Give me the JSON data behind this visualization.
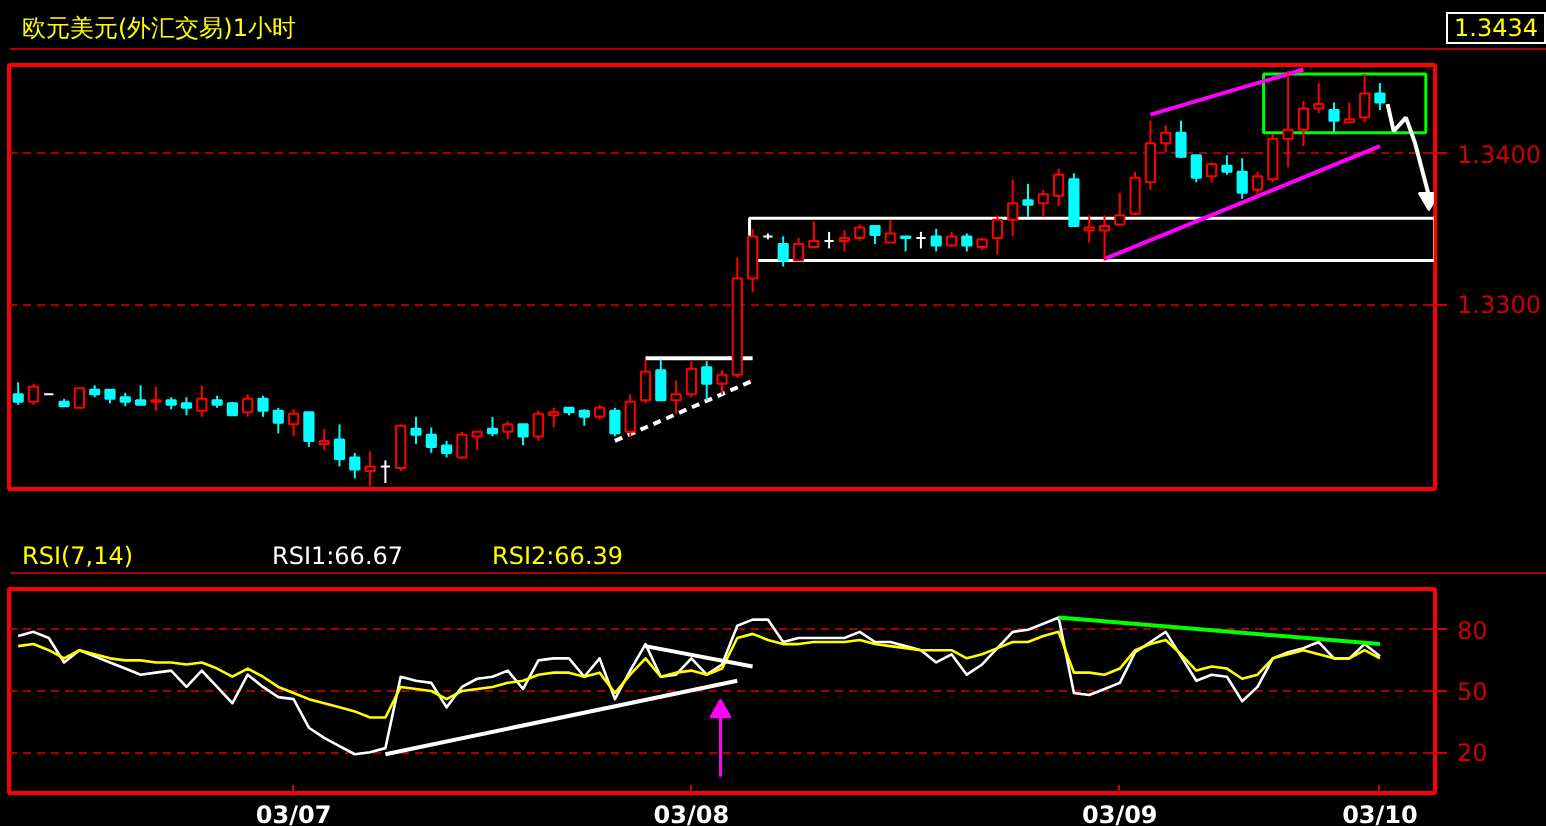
{
  "chart_data": [
    {
      "type": "candlestick",
      "title": "欧元美元(外汇交易)1小时",
      "categories": [
        null,
        null,
        null,
        null,
        null,
        null,
        null,
        null,
        null,
        null,
        null,
        null,
        null,
        null,
        null,
        null,
        null,
        null,
        null,
        null,
        null,
        null,
        null,
        null,
        null,
        null,
        null,
        null,
        null,
        null,
        null,
        null,
        null,
        null,
        null,
        null,
        null,
        null,
        null,
        null,
        null,
        null,
        null,
        null,
        null,
        null,
        null,
        null,
        null,
        null,
        null,
        null,
        null,
        null,
        null,
        null,
        null,
        null,
        null,
        null,
        null,
        null,
        null,
        null,
        null,
        null,
        null,
        null,
        null,
        null,
        null,
        null,
        null,
        null,
        null,
        null,
        null,
        null,
        null,
        null,
        null,
        null,
        null,
        null,
        null,
        null,
        null,
        null,
        null,
        null
      ],
      "ohlc": [
        [
          1.324,
          1.3248,
          1.3233,
          1.3235
        ],
        [
          1.3235,
          1.3247,
          1.3233,
          1.3245
        ],
        [
          1.324,
          1.324,
          1.324,
          1.324
        ],
        [
          1.3235,
          1.3237,
          1.3232,
          1.3232
        ],
        [
          1.3231,
          1.3244,
          1.3231,
          1.3244
        ],
        [
          1.3243,
          1.3246,
          1.3238,
          1.324
        ],
        [
          1.3243,
          1.3243,
          1.3234,
          1.3237
        ],
        [
          1.3238,
          1.3241,
          1.3232,
          1.3235
        ],
        [
          1.3236,
          1.3246,
          1.3233,
          1.3233
        ],
        [
          1.3235,
          1.3245,
          1.3229,
          1.3236
        ],
        [
          1.3236,
          1.3238,
          1.323,
          1.3233
        ],
        [
          1.3234,
          1.3238,
          1.3226,
          1.3231
        ],
        [
          1.3229,
          1.3246,
          1.3225,
          1.3237
        ],
        [
          1.3236,
          1.3239,
          1.3231,
          1.3233
        ],
        [
          1.3234,
          1.3235,
          1.3226,
          1.3226
        ],
        [
          1.3228,
          1.324,
          1.3225,
          1.3237
        ],
        [
          1.3237,
          1.3239,
          1.3225,
          1.3229
        ],
        [
          1.3229,
          1.3231,
          1.3214,
          1.3221
        ],
        [
          1.322,
          1.323,
          1.3212,
          1.3227
        ],
        [
          1.3228,
          1.3228,
          1.3205,
          1.3209
        ],
        [
          1.3207,
          1.3217,
          1.3203,
          1.3209
        ],
        [
          1.321,
          1.322,
          1.3192,
          1.3197
        ],
        [
          1.3198,
          1.3201,
          1.3184,
          1.319
        ],
        [
          1.3189,
          1.3202,
          1.3179,
          1.3192
        ],
        [
          1.3192,
          1.3196,
          1.3181,
          1.3192
        ],
        [
          1.3191,
          1.322,
          1.3189,
          1.3219
        ],
        [
          1.3217,
          1.3225,
          1.3207,
          1.3213
        ],
        [
          1.3213,
          1.3218,
          1.3201,
          1.3205
        ],
        [
          1.3206,
          1.3209,
          1.3198,
          1.3201
        ],
        [
          1.3198,
          1.3215,
          1.3197,
          1.3213
        ],
        [
          1.3212,
          1.3215,
          1.3203,
          1.3215
        ],
        [
          1.3217,
          1.3225,
          1.3212,
          1.3214
        ],
        [
          1.3215,
          1.3222,
          1.321,
          1.322
        ],
        [
          1.322,
          1.322,
          1.3206,
          1.3212
        ],
        [
          1.3212,
          1.3229,
          1.3209,
          1.3227
        ],
        [
          1.3226,
          1.3231,
          1.3218,
          1.3228
        ],
        [
          1.3231,
          1.3231,
          1.3226,
          1.3228
        ],
        [
          1.3229,
          1.323,
          1.3219,
          1.3225
        ],
        [
          1.3225,
          1.3233,
          1.3223,
          1.3231
        ],
        [
          1.3229,
          1.3231,
          1.3212,
          1.3214
        ],
        [
          1.3215,
          1.324,
          1.3212,
          1.3235
        ],
        [
          1.3236,
          1.3263,
          1.3234,
          1.3255
        ],
        [
          1.3256,
          1.3263,
          1.3236,
          1.3236
        ],
        [
          1.3236,
          1.3249,
          1.3227,
          1.324
        ],
        [
          1.324,
          1.3262,
          1.3238,
          1.3257
        ],
        [
          1.3258,
          1.3262,
          1.3236,
          1.3247
        ],
        [
          1.3247,
          1.3256,
          1.324,
          1.3253
        ],
        [
          1.3253,
          1.3331,
          1.3251,
          1.3317
        ],
        [
          1.3317,
          1.335,
          1.3308,
          1.3345
        ],
        [
          1.3345,
          1.3347,
          1.3343,
          1.3345
        ],
        [
          1.334,
          1.3345,
          1.3325,
          1.3329
        ],
        [
          1.3329,
          1.3344,
          1.3329,
          1.334
        ],
        [
          1.3338,
          1.3355,
          1.3338,
          1.3342
        ],
        [
          1.3342,
          1.3348,
          1.3337,
          1.3342
        ],
        [
          1.3342,
          1.3349,
          1.3335,
          1.3344
        ],
        [
          1.3344,
          1.3353,
          1.3342,
          1.3351
        ],
        [
          1.3352,
          1.3352,
          1.334,
          1.3346
        ],
        [
          1.3341,
          1.3356,
          1.3341,
          1.3347
        ],
        [
          1.3345,
          1.3345,
          1.3335,
          1.3344
        ],
        [
          1.3344,
          1.3348,
          1.3337,
          1.3344
        ],
        [
          1.3345,
          1.335,
          1.3335,
          1.3339
        ],
        [
          1.3339,
          1.3348,
          1.3338,
          1.3345
        ],
        [
          1.3345,
          1.3347,
          1.3335,
          1.3339
        ],
        [
          1.3338,
          1.3344,
          1.3336,
          1.3343
        ],
        [
          1.3344,
          1.3359,
          1.3333,
          1.3356
        ],
        [
          1.3356,
          1.3383,
          1.3345,
          1.3367
        ],
        [
          1.3369,
          1.338,
          1.3358,
          1.3366
        ],
        [
          1.3367,
          1.3376,
          1.3358,
          1.3373
        ],
        [
          1.3372,
          1.339,
          1.3365,
          1.3386
        ],
        [
          1.3383,
          1.3387,
          1.3352,
          1.3352
        ],
        [
          1.3349,
          1.3359,
          1.3341,
          1.3351
        ],
        [
          1.3349,
          1.3359,
          1.3329,
          1.3352
        ],
        [
          1.3353,
          1.3374,
          1.3352,
          1.3359
        ],
        [
          1.336,
          1.3388,
          1.3359,
          1.3384
        ],
        [
          1.3381,
          1.3422,
          1.3376,
          1.3407
        ],
        [
          1.3407,
          1.3419,
          1.3401,
          1.3414
        ],
        [
          1.3414,
          1.3422,
          1.3397,
          1.3398
        ],
        [
          1.3399,
          1.3399,
          1.3381,
          1.3384
        ],
        [
          1.3385,
          1.3394,
          1.3381,
          1.3393
        ],
        [
          1.3392,
          1.3399,
          1.3386,
          1.3388
        ],
        [
          1.3388,
          1.3397,
          1.337,
          1.3374
        ],
        [
          1.3376,
          1.3388,
          1.3372,
          1.3385
        ],
        [
          1.3383,
          1.3413,
          1.3381,
          1.341
        ],
        [
          1.341,
          1.3455,
          1.3391,
          1.3416
        ],
        [
          1.3416,
          1.3435,
          1.3405,
          1.343
        ],
        [
          1.343,
          1.3447,
          1.3427,
          1.3433
        ],
        [
          1.3429,
          1.3434,
          1.3414,
          1.3422
        ],
        [
          1.3421,
          1.3434,
          1.3421,
          1.3423
        ],
        [
          1.3424,
          1.3453,
          1.3421,
          1.344
        ],
        [
          1.344,
          1.3447,
          1.3429,
          1.3434
        ]
      ],
      "colors": [
        "#00ffff",
        "#ff0000",
        "#ffffff",
        "#00ffff",
        "#ff0000",
        "#00ffff",
        "#00ffff",
        "#00ffff",
        "#00ffff",
        "#ff0000",
        "#00ffff",
        "#00ffff",
        "#ff0000",
        "#00ffff",
        "#00ffff",
        "#ff0000",
        "#00ffff",
        "#00ffff",
        "#ff0000",
        "#00ffff",
        "#ff0000",
        "#00ffff",
        "#00ffff",
        "#ff0000",
        "#ffffff",
        "#ff0000",
        "#00ffff",
        "#00ffff",
        "#00ffff",
        "#ff0000",
        "#ff0000",
        "#00ffff",
        "#ff0000",
        "#00ffff",
        "#ff0000",
        "#ff0000",
        "#00ffff",
        "#00ffff",
        "#ff0000",
        "#00ffff",
        "#ff0000",
        "#ff0000",
        "#00ffff",
        "#ff0000",
        "#ff0000",
        "#00ffff",
        "#ff0000",
        "#ff0000",
        "#ff0000",
        "#ffffff",
        "#00ffff",
        "#ff0000",
        "#ff0000",
        "#ffffff",
        "#ff0000",
        "#ff0000",
        "#00ffff",
        "#ff0000",
        "#00ffff",
        "#ffffff",
        "#00ffff",
        "#ff0000",
        "#00ffff",
        "#ff0000",
        "#ff0000",
        "#ff0000",
        "#00ffff",
        "#ff0000",
        "#ff0000",
        "#00ffff",
        "#ff0000",
        "#ff0000",
        "#ff0000",
        "#ff0000",
        "#ff0000",
        "#ff0000",
        "#00ffff",
        "#00ffff",
        "#ff0000",
        "#00ffff",
        "#00ffff",
        "#ff0000",
        "#ff0000",
        "#ff0000",
        "#ff0000",
        "#ff0000",
        "#00ffff",
        "#ff0000",
        "#ff0000",
        "#00ffff"
      ],
      "series": [
        {
          "type": "line",
          "color": "#ff00ff",
          "values": [
            null,
            null,
            null,
            null,
            null,
            null,
            null,
            null,
            null,
            null,
            null,
            null,
            null,
            null,
            null,
            null,
            null,
            null,
            null,
            null,
            null,
            null,
            null,
            null,
            null,
            null,
            null,
            null,
            null,
            null,
            null,
            null,
            null,
            null,
            null,
            null,
            null,
            null,
            null,
            null,
            null,
            null,
            null,
            null,
            null,
            null,
            null,
            null,
            null,
            null,
            null,
            null,
            null,
            null,
            null,
            null,
            null,
            null,
            null,
            null,
            null,
            null,
            null,
            null,
            null,
            null,
            null,
            null,
            null,
            null,
            null,
            null,
            null,
            null,
            1.3426,
            null,
            null,
            null,
            null,
            null,
            null,
            null,
            null,
            null,
            1.3456,
            null,
            null,
            null,
            null,
            null
          ]
        },
        {
          "type": "line",
          "color": "#ff00ff",
          "values": [
            null,
            null,
            null,
            null,
            null,
            null,
            null,
            null,
            null,
            null,
            null,
            null,
            null,
            null,
            null,
            null,
            null,
            null,
            null,
            null,
            null,
            null,
            null,
            null,
            null,
            null,
            null,
            null,
            null,
            null,
            null,
            null,
            null,
            null,
            null,
            null,
            null,
            null,
            null,
            null,
            null,
            null,
            null,
            null,
            null,
            null,
            null,
            null,
            null,
            null,
            null,
            null,
            null,
            null,
            null,
            null,
            null,
            null,
            null,
            null,
            null,
            null,
            null,
            null,
            null,
            null,
            null,
            null,
            null,
            null,
            null,
            1.333,
            null,
            null,
            null,
            null,
            null,
            null,
            null,
            null,
            null,
            null,
            null,
            null,
            null,
            null,
            null,
            null,
            null,
            1.3405
          ]
        },
        {
          "type": "line",
          "color": "#ffffff",
          "values": [
            null,
            null,
            null,
            null,
            null,
            null,
            null,
            null,
            null,
            null,
            null,
            null,
            null,
            null,
            null,
            null,
            null,
            null,
            null,
            null,
            null,
            null,
            null,
            null,
            null,
            null,
            null,
            null,
            null,
            null,
            null,
            null,
            null,
            null,
            null,
            null,
            null,
            null,
            null,
            null,
            null,
            1.3264,
            null,
            null,
            null,
            null,
            null,
            null,
            1.3264,
            null,
            null,
            null,
            null,
            null,
            null,
            null,
            null,
            null,
            null,
            null,
            null,
            null,
            null,
            null,
            null,
            null,
            null,
            null,
            null,
            null,
            null,
            null,
            null,
            null,
            null,
            null,
            null,
            null,
            null,
            null,
            null,
            null,
            null,
            null,
            null,
            null,
            null,
            null,
            null,
            null
          ]
        },
        {
          "type": "line",
          "color": "#ffffff",
          "line_style": "dashed",
          "values": [
            null,
            null,
            null,
            null,
            null,
            null,
            null,
            null,
            null,
            null,
            null,
            null,
            null,
            null,
            null,
            null,
            null,
            null,
            null,
            null,
            null,
            null,
            null,
            null,
            null,
            null,
            null,
            null,
            null,
            null,
            null,
            null,
            null,
            null,
            null,
            null,
            null,
            null,
            null,
            1.3209,
            null,
            null,
            null,
            null,
            null,
            null,
            null,
            null,
            1.3249,
            null,
            null,
            null,
            null,
            null,
            null,
            null,
            null,
            null,
            null,
            null,
            null,
            null,
            null,
            null,
            null,
            null,
            null,
            null,
            null,
            null,
            null,
            null,
            null,
            null,
            null,
            null,
            null,
            null,
            null,
            null,
            null,
            null,
            null,
            null,
            null,
            null,
            null,
            null,
            null,
            null
          ]
        }
      ],
      "annotations": [
        "1.3434"
      ],
      "ylim": [
        1.3177,
        1.3459
      ],
      "yticks": [
        {
          "value": 1.33,
          "label": "1.3300"
        },
        {
          "value": 1.34,
          "label": "1.3400"
        }
      ],
      "grid": "y"
    },
    {
      "type": "line",
      "title": "RSI(7,14)",
      "legend": "top left",
      "categories": [
        null,
        null,
        null,
        null,
        null,
        null,
        null,
        null,
        null,
        null,
        null,
        null,
        null,
        null,
        null,
        null,
        null,
        null,
        "03/07",
        null,
        null,
        null,
        null,
        null,
        null,
        null,
        null,
        null,
        null,
        null,
        null,
        null,
        null,
        null,
        null,
        null,
        null,
        null,
        null,
        null,
        null,
        null,
        null,
        null,
        "03/08",
        null,
        null,
        null,
        null,
        null,
        null,
        null,
        null,
        null,
        null,
        null,
        null,
        null,
        null,
        null,
        null,
        null,
        null,
        null,
        null,
        null,
        null,
        null,
        null,
        null,
        null,
        null,
        "03/09",
        null,
        null,
        null,
        null,
        null,
        null,
        null,
        null,
        null,
        null,
        null,
        null,
        null,
        null,
        null,
        null,
        "03/10"
      ],
      "series": [
        {
          "name": "RSI1:66.67",
          "color": "#ffffff",
          "values": [
            77,
            79,
            76,
            64,
            70,
            67,
            64,
            61,
            58,
            59,
            60,
            52,
            60,
            52,
            44,
            58,
            52,
            47,
            46,
            32,
            27,
            23,
            19,
            20,
            22,
            57,
            55,
            54,
            42,
            52,
            56,
            57,
            60,
            51,
            65,
            66,
            66,
            57,
            66,
            46,
            60,
            73,
            57,
            58,
            66,
            58,
            63,
            82,
            85,
            85,
            74,
            76,
            76,
            76,
            76,
            79,
            74,
            74,
            72,
            70,
            64,
            68,
            58,
            63,
            71,
            79,
            80,
            83,
            86,
            49,
            48,
            51,
            54,
            69,
            74,
            79,
            67,
            55,
            58,
            57,
            45,
            52,
            66,
            69,
            71,
            74,
            66,
            66,
            73,
            67
          ]
        },
        {
          "name": "RSI2:66.39",
          "color": "#ffff00",
          "values": [
            72,
            73,
            70,
            66,
            70,
            68,
            66,
            65,
            65,
            64,
            64,
            63,
            64,
            61,
            57,
            61,
            57,
            52,
            49,
            46,
            44,
            42,
            40,
            37,
            37,
            52,
            51,
            50,
            46,
            50,
            51,
            52,
            54,
            55,
            58,
            59,
            59,
            57,
            59,
            49,
            58,
            66,
            57,
            59,
            60,
            58,
            61,
            76,
            78,
            75,
            73,
            73,
            74,
            74,
            74,
            75,
            73,
            72,
            71,
            70,
            70,
            70,
            66,
            68,
            71,
            74,
            74,
            77,
            79,
            59,
            59,
            58,
            61,
            70,
            73,
            75,
            68,
            60,
            62,
            61,
            56,
            58,
            66,
            68,
            70,
            68,
            66,
            66,
            70,
            66
          ]
        },
        {
          "type": "line",
          "color": "#ffffff",
          "values": [
            null,
            null,
            null,
            null,
            null,
            null,
            null,
            null,
            null,
            null,
            null,
            null,
            null,
            null,
            null,
            null,
            null,
            null,
            null,
            null,
            null,
            null,
            null,
            null,
            19,
            null,
            null,
            null,
            null,
            null,
            null,
            null,
            null,
            null,
            null,
            null,
            null,
            null,
            null,
            null,
            null,
            null,
            null,
            null,
            null,
            null,
            null,
            55,
            null,
            null,
            null,
            null,
            null,
            null,
            null,
            null,
            null,
            null,
            null,
            null,
            null,
            null,
            null,
            null,
            null,
            null,
            null,
            null,
            null,
            null,
            null,
            null,
            null,
            null,
            null,
            null,
            null,
            null,
            null,
            null,
            null,
            null,
            null,
            null,
            null,
            null,
            null,
            null,
            null,
            null
          ]
        },
        {
          "type": "line",
          "color": "#ffffff",
          "values": [
            null,
            null,
            null,
            null,
            null,
            null,
            null,
            null,
            null,
            null,
            null,
            null,
            null,
            null,
            null,
            null,
            null,
            null,
            null,
            null,
            null,
            null,
            null,
            null,
            null,
            null,
            null,
            null,
            null,
            null,
            null,
            null,
            null,
            null,
            null,
            null,
            null,
            null,
            null,
            null,
            null,
            72,
            null,
            null,
            null,
            null,
            null,
            null,
            62,
            null,
            null,
            null,
            null,
            null,
            null,
            null,
            null,
            null,
            null,
            null,
            null,
            null,
            null,
            null,
            null,
            null,
            null,
            null,
            null,
            null,
            null,
            null,
            null,
            null,
            null,
            null,
            null,
            null,
            null,
            null,
            null,
            null,
            null,
            null,
            null,
            null,
            null,
            null,
            null,
            null
          ]
        },
        {
          "type": "line",
          "color": "#00ff00",
          "values": [
            null,
            null,
            null,
            null,
            null,
            null,
            null,
            null,
            null,
            null,
            null,
            null,
            null,
            null,
            null,
            null,
            null,
            null,
            null,
            null,
            null,
            null,
            null,
            null,
            null,
            null,
            null,
            null,
            null,
            null,
            null,
            null,
            null,
            null,
            null,
            null,
            null,
            null,
            null,
            null,
            null,
            null,
            null,
            null,
            null,
            null,
            null,
            null,
            null,
            null,
            null,
            null,
            null,
            null,
            null,
            null,
            null,
            null,
            null,
            null,
            null,
            null,
            null,
            null,
            null,
            null,
            null,
            null,
            86,
            null,
            null,
            null,
            null,
            null,
            null,
            null,
            null,
            null,
            null,
            null,
            null,
            null,
            null,
            null,
            null,
            null,
            null,
            null,
            null,
            73
          ]
        }
      ],
      "ylim": [
        0,
        100
      ],
      "yticks": [
        20,
        50,
        80
      ],
      "grid": "y"
    }
  ]
}
